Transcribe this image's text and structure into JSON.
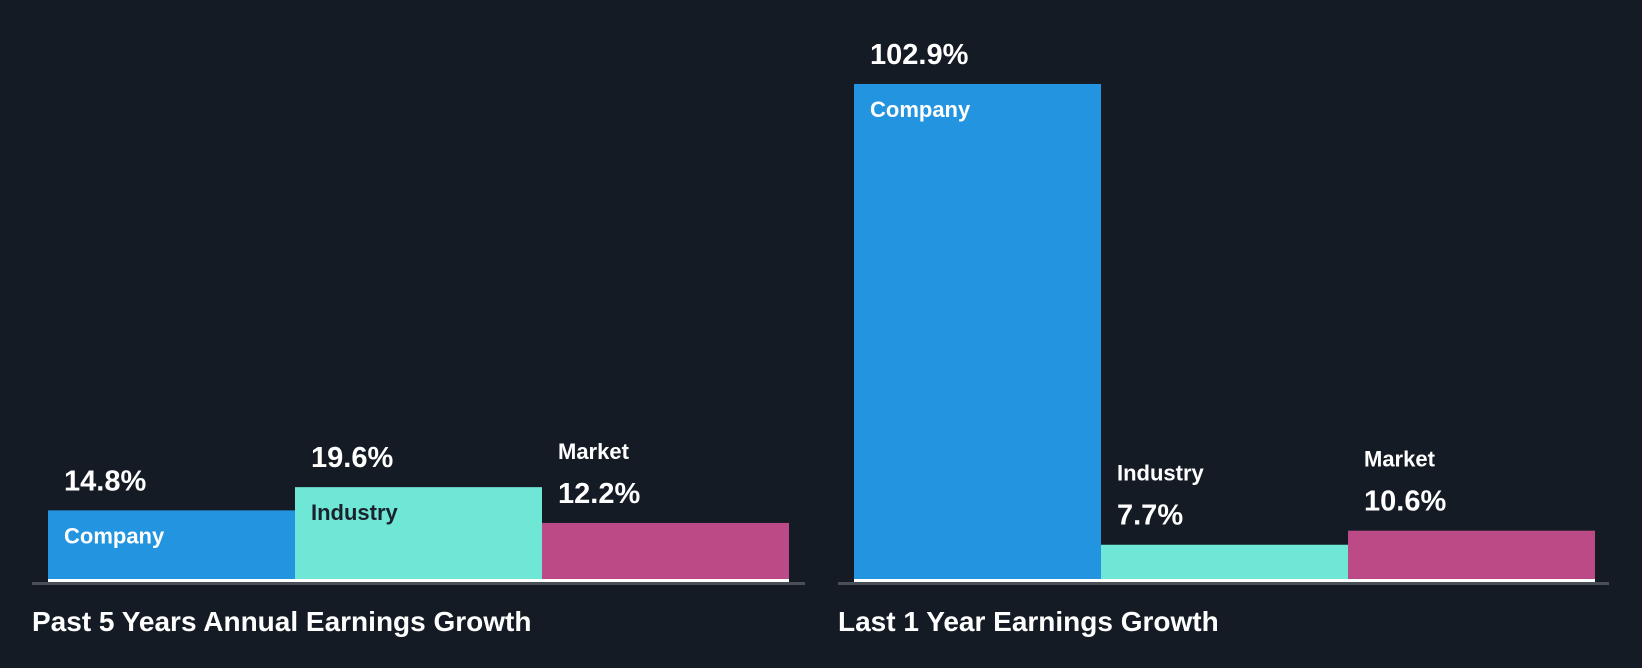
{
  "chart_data": [
    {
      "type": "bar",
      "title": "Past 5 Years Annual Earnings Growth",
      "categories": [
        "Company",
        "Industry",
        "Market"
      ],
      "values": [
        14.8,
        19.6,
        12.2
      ],
      "value_labels": [
        "14.8%",
        "19.6%",
        "12.2%"
      ],
      "colors": [
        "#2394df",
        "#6ee7d6",
        "#bc4a86"
      ],
      "label_colors": [
        "#ffffff",
        "#1b222d",
        "#ffffff"
      ],
      "unit": "%"
    },
    {
      "type": "bar",
      "title": "Last 1 Year Earnings Growth",
      "categories": [
        "Company",
        "Industry",
        "Market"
      ],
      "values": [
        102.9,
        7.7,
        10.6
      ],
      "value_labels": [
        "102.9%",
        "7.7%",
        "10.6%"
      ],
      "colors": [
        "#2394df",
        "#6ee7d6",
        "#bc4a86"
      ],
      "label_colors": [
        "#ffffff",
        "#1b222d",
        "#ffffff"
      ],
      "unit": "%"
    }
  ]
}
